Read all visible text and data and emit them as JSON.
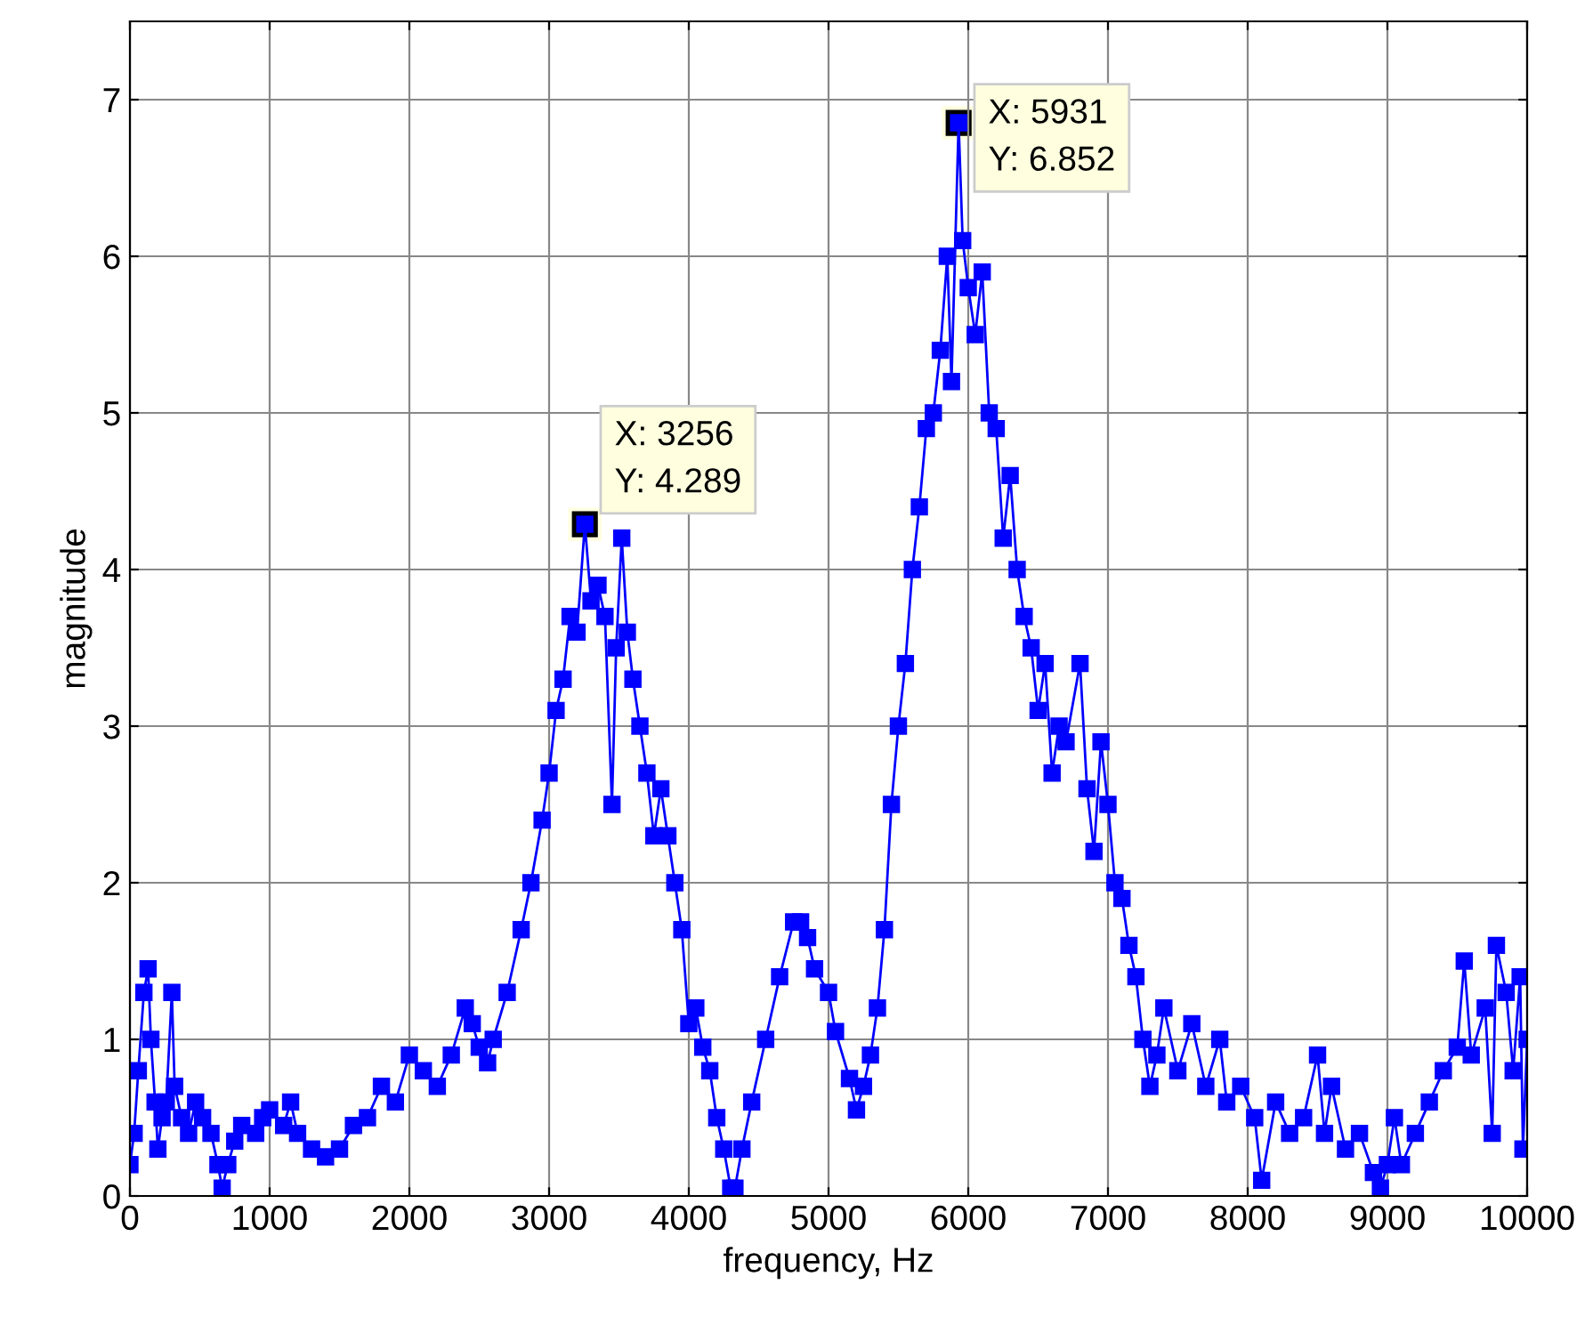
{
  "chart_data": {
    "type": "line",
    "xlabel": "frequency, Hz",
    "ylabel": "magnitude",
    "xlim": [
      0,
      10000
    ],
    "ylim": [
      0,
      7.5
    ],
    "xticks": [
      0,
      1000,
      2000,
      3000,
      4000,
      5000,
      6000,
      7000,
      8000,
      9000,
      10000
    ],
    "yticks": [
      0,
      1,
      2,
      3,
      4,
      5,
      6,
      7
    ],
    "grid": true,
    "marker": "square",
    "line_style": "solid",
    "series": [
      {
        "color": "#0000ff",
        "x": [
          0,
          30,
          60,
          100,
          130,
          150,
          180,
          200,
          230,
          260,
          300,
          320,
          370,
          420,
          470,
          520,
          580,
          630,
          660,
          700,
          750,
          800,
          900,
          950,
          1000,
          1100,
          1150,
          1200,
          1300,
          1400,
          1500,
          1600,
          1700,
          1800,
          1900,
          2000,
          2100,
          2200,
          2300,
          2400,
          2450,
          2500,
          2560,
          2600,
          2700,
          2800,
          2870,
          2950,
          3000,
          3050,
          3100,
          3150,
          3200,
          3256,
          3300,
          3350,
          3400,
          3450,
          3480,
          3520,
          3560,
          3600,
          3650,
          3700,
          3750,
          3800,
          3850,
          3900,
          3950,
          4000,
          4050,
          4100,
          4150,
          4200,
          4250,
          4300,
          4330,
          4380,
          4450,
          4550,
          4650,
          4750,
          4800,
          4850,
          4900,
          5000,
          5050,
          5150,
          5200,
          5250,
          5300,
          5350,
          5400,
          5450,
          5500,
          5550,
          5600,
          5650,
          5700,
          5750,
          5800,
          5850,
          5880,
          5931,
          5960,
          6000,
          6050,
          6100,
          6150,
          6200,
          6250,
          6300,
          6350,
          6400,
          6450,
          6500,
          6550,
          6600,
          6650,
          6700,
          6800,
          6850,
          6900,
          6950,
          7000,
          7050,
          7100,
          7150,
          7200,
          7250,
          7300,
          7350,
          7400,
          7500,
          7600,
          7700,
          7800,
          7850,
          7950,
          8050,
          8100,
          8200,
          8300,
          8400,
          8500,
          8550,
          8600,
          8700,
          8800,
          8900,
          8950,
          9000,
          9050,
          9100,
          9200,
          9300,
          9400,
          9500,
          9550,
          9600,
          9700,
          9750,
          9780,
          9850,
          9900,
          9950,
          9970,
          10000
        ],
        "values": [
          0.2,
          0.4,
          0.8,
          1.3,
          1.45,
          1.0,
          0.6,
          0.3,
          0.5,
          0.6,
          1.3,
          0.7,
          0.5,
          0.4,
          0.6,
          0.5,
          0.4,
          0.2,
          0.05,
          0.2,
          0.35,
          0.45,
          0.4,
          0.5,
          0.55,
          0.45,
          0.6,
          0.4,
          0.3,
          0.25,
          0.3,
          0.45,
          0.5,
          0.7,
          0.6,
          0.9,
          0.8,
          0.7,
          0.9,
          1.2,
          1.1,
          0.95,
          0.85,
          1.0,
          1.3,
          1.7,
          2.0,
          2.4,
          2.7,
          3.1,
          3.3,
          3.7,
          3.6,
          4.289,
          3.8,
          3.9,
          3.7,
          2.5,
          3.5,
          4.2,
          3.6,
          3.3,
          3.0,
          2.7,
          2.3,
          2.6,
          2.3,
          2.0,
          1.7,
          1.1,
          1.2,
          0.95,
          0.8,
          0.5,
          0.3,
          0.05,
          0.05,
          0.3,
          0.6,
          1.0,
          1.4,
          1.75,
          1.75,
          1.65,
          1.45,
          1.3,
          1.05,
          0.75,
          0.55,
          0.7,
          0.9,
          1.2,
          1.7,
          2.5,
          3.0,
          3.4,
          4.0,
          4.4,
          4.9,
          5.0,
          5.4,
          6.0,
          5.2,
          6.852,
          6.1,
          5.8,
          5.5,
          5.9,
          5.0,
          4.9,
          4.2,
          4.6,
          4.0,
          3.7,
          3.5,
          3.1,
          3.4,
          2.7,
          3.0,
          2.9,
          3.4,
          2.6,
          2.2,
          2.9,
          2.5,
          2.0,
          1.9,
          1.6,
          1.4,
          1.0,
          0.7,
          0.9,
          1.2,
          0.8,
          1.1,
          0.7,
          1.0,
          0.6,
          0.7,
          0.5,
          0.1,
          0.6,
          0.4,
          0.5,
          0.9,
          0.4,
          0.7,
          0.3,
          0.4,
          0.15,
          0.05,
          0.2,
          0.5,
          0.2,
          0.4,
          0.6,
          0.8,
          0.95,
          1.5,
          0.9,
          1.2,
          0.4,
          1.6,
          1.3,
          0.8,
          1.4,
          0.3,
          1.0
        ]
      }
    ],
    "annotations": [
      {
        "text": "X: 3256\nY: 4.289",
        "x": 3256,
        "y": 4.289
      },
      {
        "text": "X: 5931\nY: 6.852",
        "x": 5931,
        "y": 6.852
      }
    ]
  }
}
